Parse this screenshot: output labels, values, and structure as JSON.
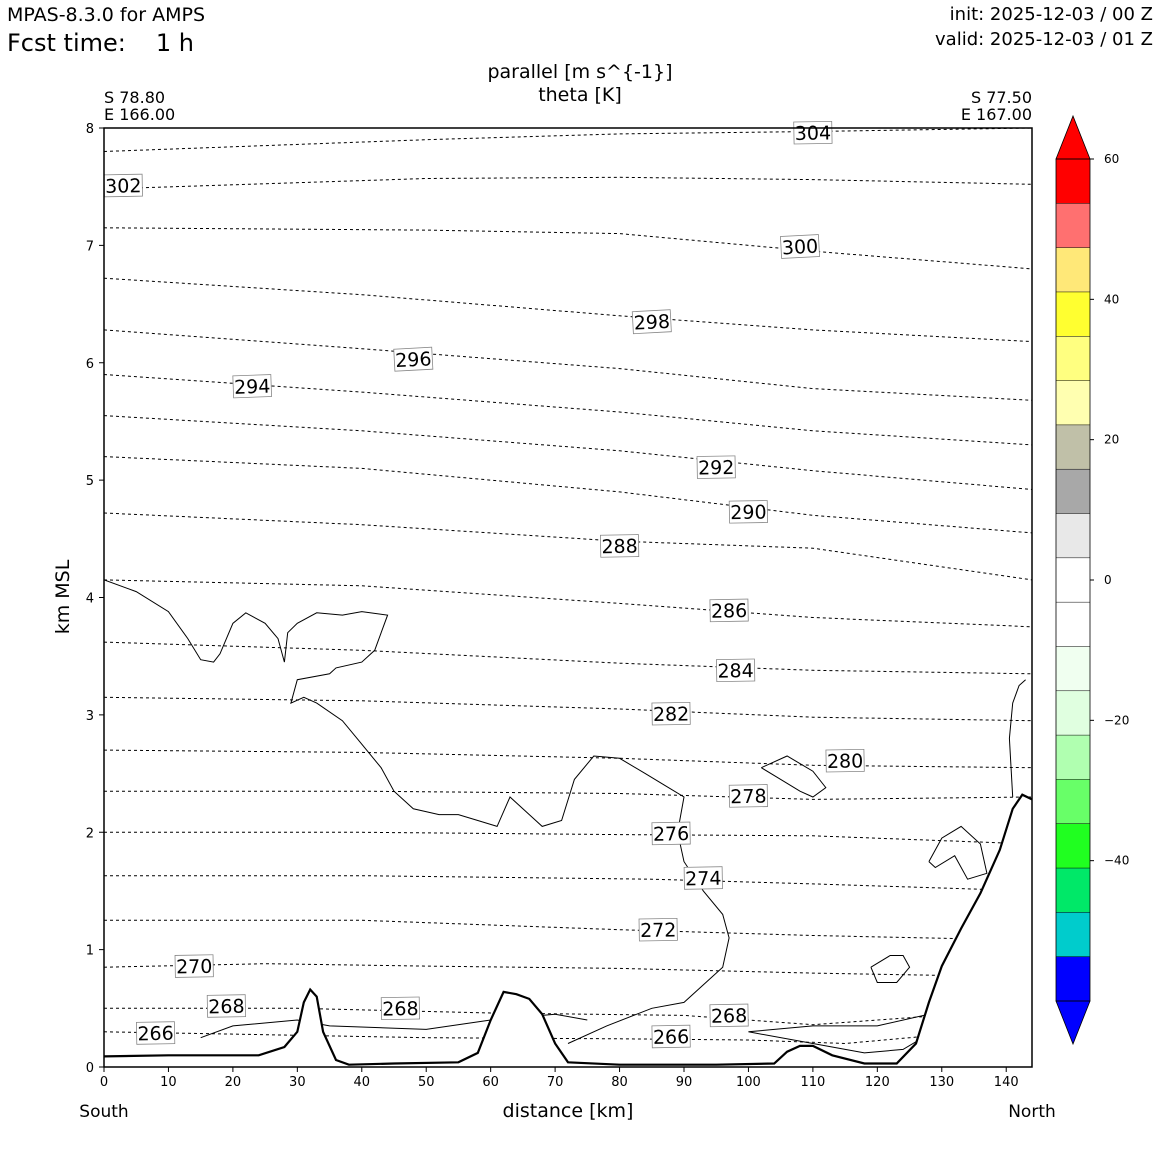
{
  "header": {
    "model": "MPAS-8.3.0 for AMPS",
    "fcst_label": "Fcst time:",
    "fcst_value": "1 h",
    "init": "init: 2025-12-03 / 00 Z",
    "valid": "valid: 2025-12-03 / 01 Z"
  },
  "chart_data": {
    "type": "contour",
    "title_line1": "parallel [m s^{-1}]",
    "title_line2": "theta [K]",
    "xlabel": "distance [km]",
    "ylabel": "km MSL",
    "left_end": {
      "lat": "S 78.80",
      "lon": "E 166.00",
      "dir": "South"
    },
    "right_end": {
      "lat": "S 77.50",
      "lon": "E 167.00",
      "dir": "North"
    },
    "xlim": [
      0,
      144
    ],
    "ylim": [
      0,
      8
    ],
    "xticks": [
      0,
      10,
      20,
      30,
      40,
      50,
      60,
      70,
      80,
      90,
      100,
      110,
      120,
      130,
      140
    ],
    "yticks": [
      0,
      1,
      2,
      3,
      4,
      5,
      6,
      7,
      8
    ],
    "theta_contours": [
      {
        "value": 266,
        "pts": [
          [
            0,
            0.3
          ],
          [
            20,
            0.28
          ],
          [
            50,
            0.25
          ],
          [
            80,
            0.24
          ],
          [
            100,
            0.23
          ],
          [
            115,
            0.2
          ],
          [
            125,
            0.25
          ],
          [
            135,
            0.3
          ],
          [
            144,
            0.35
          ]
        ],
        "labels": [
          [
            8,
            0.29
          ],
          [
            88,
            0.26
          ]
        ]
      },
      {
        "value": 268,
        "pts": [
          [
            0,
            0.5
          ],
          [
            30,
            0.5
          ],
          [
            60,
            0.46
          ],
          [
            90,
            0.44
          ],
          [
            110,
            0.36
          ],
          [
            125,
            0.42
          ],
          [
            144,
            0.5
          ]
        ],
        "labels": [
          [
            19,
            0.52
          ],
          [
            46,
            0.5
          ],
          [
            97,
            0.44
          ]
        ]
      },
      {
        "value": 270,
        "pts": [
          [
            0,
            0.85
          ],
          [
            25,
            0.88
          ],
          [
            50,
            0.86
          ],
          [
            80,
            0.84
          ],
          [
            110,
            0.8
          ],
          [
            130,
            0.78
          ],
          [
            144,
            0.8
          ]
        ],
        "labels": [
          [
            14,
            0.86
          ]
        ]
      },
      {
        "value": 272,
        "pts": [
          [
            0,
            1.25
          ],
          [
            40,
            1.25
          ],
          [
            80,
            1.17
          ],
          [
            110,
            1.12
          ],
          [
            144,
            1.08
          ]
        ],
        "labels": [
          [
            86,
            1.17
          ]
        ]
      },
      {
        "value": 274,
        "pts": [
          [
            0,
            1.63
          ],
          [
            40,
            1.63
          ],
          [
            85,
            1.6
          ],
          [
            110,
            1.56
          ],
          [
            144,
            1.5
          ]
        ],
        "labels": [
          [
            93,
            1.61
          ]
        ]
      },
      {
        "value": 276,
        "pts": [
          [
            0,
            2.0
          ],
          [
            40,
            2.0
          ],
          [
            80,
            1.98
          ],
          [
            110,
            1.97
          ],
          [
            144,
            1.9
          ]
        ],
        "labels": [
          [
            88,
            1.99
          ]
        ]
      },
      {
        "value": 278,
        "pts": [
          [
            0,
            2.35
          ],
          [
            40,
            2.35
          ],
          [
            80,
            2.33
          ],
          [
            110,
            2.28
          ],
          [
            144,
            2.3
          ]
        ],
        "labels": [
          [
            100,
            2.31
          ]
        ]
      },
      {
        "value": 280,
        "pts": [
          [
            0,
            2.7
          ],
          [
            40,
            2.68
          ],
          [
            80,
            2.63
          ],
          [
            110,
            2.57
          ],
          [
            144,
            2.55
          ]
        ],
        "labels": [
          [
            115,
            2.61
          ]
        ]
      },
      {
        "value": 282,
        "pts": [
          [
            0,
            3.15
          ],
          [
            40,
            3.12
          ],
          [
            80,
            3.05
          ],
          [
            110,
            2.98
          ],
          [
            144,
            2.95
          ]
        ],
        "labels": [
          [
            88,
            3.01
          ]
        ]
      },
      {
        "value": 284,
        "pts": [
          [
            0,
            3.62
          ],
          [
            40,
            3.55
          ],
          [
            80,
            3.44
          ],
          [
            110,
            3.38
          ],
          [
            144,
            3.35
          ]
        ],
        "labels": [
          [
            98,
            3.38
          ]
        ]
      },
      {
        "value": 286,
        "pts": [
          [
            0,
            4.15
          ],
          [
            40,
            4.1
          ],
          [
            80,
            3.95
          ],
          [
            110,
            3.83
          ],
          [
            144,
            3.75
          ]
        ],
        "labels": [
          [
            97,
            3.89
          ]
        ]
      },
      {
        "value": 288,
        "pts": [
          [
            0,
            4.72
          ],
          [
            40,
            4.62
          ],
          [
            80,
            4.48
          ],
          [
            110,
            4.42
          ],
          [
            144,
            4.15
          ]
        ],
        "labels": [
          [
            80,
            4.44
          ]
        ]
      },
      {
        "value": 290,
        "pts": [
          [
            0,
            5.2
          ],
          [
            40,
            5.1
          ],
          [
            80,
            4.9
          ],
          [
            110,
            4.7
          ],
          [
            144,
            4.55
          ]
        ],
        "labels": [
          [
            100,
            4.73
          ]
        ]
      },
      {
        "value": 292,
        "pts": [
          [
            0,
            5.55
          ],
          [
            40,
            5.42
          ],
          [
            80,
            5.25
          ],
          [
            110,
            5.08
          ],
          [
            144,
            4.92
          ]
        ],
        "labels": [
          [
            95,
            5.11
          ]
        ]
      },
      {
        "value": 294,
        "pts": [
          [
            0,
            5.9
          ],
          [
            40,
            5.75
          ],
          [
            80,
            5.58
          ],
          [
            110,
            5.42
          ],
          [
            144,
            5.3
          ]
        ],
        "labels": [
          [
            23,
            5.8
          ]
        ]
      },
      {
        "value": 296,
        "pts": [
          [
            0,
            6.28
          ],
          [
            40,
            6.12
          ],
          [
            80,
            5.95
          ],
          [
            110,
            5.78
          ],
          [
            144,
            5.68
          ]
        ],
        "labels": [
          [
            48,
            6.03
          ]
        ]
      },
      {
        "value": 298,
        "pts": [
          [
            0,
            6.72
          ],
          [
            40,
            6.58
          ],
          [
            80,
            6.4
          ],
          [
            110,
            6.28
          ],
          [
            144,
            6.18
          ]
        ],
        "labels": [
          [
            85,
            6.35
          ]
        ]
      },
      {
        "value": 300,
        "pts": [
          [
            0,
            7.15
          ],
          [
            50,
            7.13
          ],
          [
            80,
            7.1
          ],
          [
            110,
            6.95
          ],
          [
            144,
            6.8
          ]
        ],
        "labels": [
          [
            108,
            6.99
          ]
        ]
      },
      {
        "value": 302,
        "pts": [
          [
            0,
            7.48
          ],
          [
            50,
            7.57
          ],
          [
            80,
            7.58
          ],
          [
            110,
            7.56
          ],
          [
            144,
            7.52
          ]
        ],
        "labels": [
          [
            3,
            7.51
          ]
        ]
      },
      {
        "value": 304,
        "pts": [
          [
            0,
            7.8
          ],
          [
            50,
            7.9
          ],
          [
            80,
            7.95
          ],
          [
            110,
            7.97
          ],
          [
            144,
            8.0
          ]
        ],
        "labels": [
          [
            110,
            7.96
          ]
        ]
      }
    ],
    "terrain": [
      [
        0,
        0.09
      ],
      [
        10,
        0.1
      ],
      [
        24,
        0.1
      ],
      [
        28,
        0.17
      ],
      [
        30,
        0.3
      ],
      [
        31,
        0.55
      ],
      [
        32,
        0.66
      ],
      [
        33,
        0.6
      ],
      [
        34,
        0.3
      ],
      [
        36,
        0.06
      ],
      [
        38,
        0.02
      ],
      [
        45,
        0.03
      ],
      [
        55,
        0.04
      ],
      [
        58,
        0.12
      ],
      [
        60,
        0.4
      ],
      [
        62,
        0.64
      ],
      [
        64,
        0.62
      ],
      [
        66,
        0.58
      ],
      [
        68,
        0.45
      ],
      [
        70,
        0.2
      ],
      [
        72,
        0.04
      ],
      [
        80,
        0.02
      ],
      [
        95,
        0.02
      ],
      [
        104,
        0.03
      ],
      [
        106,
        0.13
      ],
      [
        108,
        0.18
      ],
      [
        110,
        0.18
      ],
      [
        113,
        0.1
      ],
      [
        118,
        0.03
      ],
      [
        123,
        0.03
      ],
      [
        126,
        0.2
      ],
      [
        128,
        0.55
      ],
      [
        130,
        0.86
      ],
      [
        133,
        1.18
      ],
      [
        136,
        1.48
      ],
      [
        139,
        1.85
      ],
      [
        141,
        2.2
      ],
      [
        142.5,
        2.32
      ],
      [
        144,
        2.28
      ]
    ],
    "parallel_contours": [
      [
        [
          0,
          4.15
        ],
        [
          5,
          4.05
        ],
        [
          10,
          3.88
        ],
        [
          13,
          3.65
        ],
        [
          15,
          3.47
        ],
        [
          17,
          3.45
        ],
        [
          18,
          3.52
        ],
        [
          20,
          3.78
        ],
        [
          22,
          3.87
        ],
        [
          25,
          3.78
        ],
        [
          27,
          3.65
        ],
        [
          28,
          3.45
        ],
        [
          28.5,
          3.7
        ],
        [
          30,
          3.78
        ],
        [
          33,
          3.87
        ],
        [
          37,
          3.85
        ],
        [
          40,
          3.88
        ],
        [
          44,
          3.85
        ],
        [
          42,
          3.55
        ],
        [
          40,
          3.45
        ],
        [
          36,
          3.4
        ],
        [
          35,
          3.35
        ],
        [
          30,
          3.3
        ],
        [
          29,
          3.1
        ],
        [
          31,
          3.15
        ],
        [
          33,
          3.1
        ],
        [
          37,
          2.95
        ],
        [
          40,
          2.75
        ],
        [
          43,
          2.55
        ],
        [
          45,
          2.35
        ],
        [
          48,
          2.2
        ],
        [
          52,
          2.15
        ],
        [
          55,
          2.15
        ],
        [
          58,
          2.1
        ],
        [
          61,
          2.05
        ],
        [
          63,
          2.3
        ],
        [
          66,
          2.15
        ],
        [
          68,
          2.05
        ],
        [
          71,
          2.1
        ],
        [
          73,
          2.45
        ],
        [
          76,
          2.65
        ],
        [
          80,
          2.63
        ],
        [
          84,
          2.5
        ],
        [
          87,
          2.4
        ],
        [
          90,
          2.3
        ],
        [
          89,
          2.0
        ],
        [
          90,
          1.75
        ],
        [
          93,
          1.5
        ],
        [
          96,
          1.3
        ],
        [
          97,
          1.1
        ],
        [
          96,
          0.85
        ],
        [
          90,
          0.55
        ],
        [
          85,
          0.5
        ],
        [
          78,
          0.35
        ],
        [
          72,
          0.2
        ]
      ],
      [
        [
          15,
          0.25
        ],
        [
          20,
          0.35
        ],
        [
          30,
          0.4
        ],
        [
          35,
          0.35
        ],
        [
          50,
          0.32
        ],
        [
          60,
          0.4
        ],
        [
          70,
          0.45
        ],
        [
          75,
          0.4
        ]
      ],
      [
        [
          102,
          2.55
        ],
        [
          106,
          2.65
        ],
        [
          110,
          2.52
        ],
        [
          112,
          2.38
        ],
        [
          110,
          2.3
        ],
        [
          108,
          2.35
        ],
        [
          105,
          2.45
        ],
        [
          102,
          2.55
        ]
      ],
      [
        [
          128,
          1.75
        ],
        [
          130,
          1.95
        ],
        [
          133,
          2.05
        ],
        [
          136,
          1.9
        ],
        [
          137,
          1.65
        ],
        [
          134,
          1.6
        ],
        [
          132,
          1.8
        ],
        [
          129,
          1.7
        ],
        [
          128,
          1.75
        ]
      ],
      [
        [
          119,
          0.85
        ],
        [
          122,
          0.95
        ],
        [
          124,
          0.95
        ],
        [
          125,
          0.85
        ],
        [
          123,
          0.72
        ],
        [
          120,
          0.72
        ],
        [
          119,
          0.85
        ]
      ],
      [
        [
          141,
          2.3
        ],
        [
          140.5,
          2.8
        ],
        [
          141,
          3.1
        ],
        [
          142,
          3.25
        ],
        [
          143,
          3.3
        ]
      ],
      [
        [
          100,
          0.3
        ],
        [
          110,
          0.35
        ],
        [
          120,
          0.35
        ],
        [
          128,
          0.45
        ],
        [
          130,
          0.6
        ],
        [
          128,
          0.28
        ],
        [
          124,
          0.15
        ],
        [
          118,
          0.12
        ],
        [
          110,
          0.2
        ],
        [
          100,
          0.3
        ]
      ]
    ],
    "colorbar": {
      "bounds": [
        -60,
        60
      ],
      "step": 5,
      "tick_values": [
        60,
        40,
        20,
        0,
        -20,
        -40
      ],
      "tick_labels": [
        "60",
        "40",
        "20",
        "0",
        "−20",
        "−40"
      ],
      "colors_top_to_bottom": [
        "#ff0000",
        "#ff7070",
        "#ffe878",
        "#ffff30",
        "#ffff80",
        "#ffffb0",
        "#c0c0a8",
        "#a8a8a8",
        "#e8e8e8",
        "#ffffff",
        "#ffffff",
        "#f0fff0",
        "#e0ffe0",
        "#b0ffb0",
        "#68ff68",
        "#20ff20",
        "#00e868",
        "#00cccc",
        "#0000ff"
      ],
      "extend_top": "#ff0000",
      "extend_bottom": "#0000ff"
    }
  }
}
